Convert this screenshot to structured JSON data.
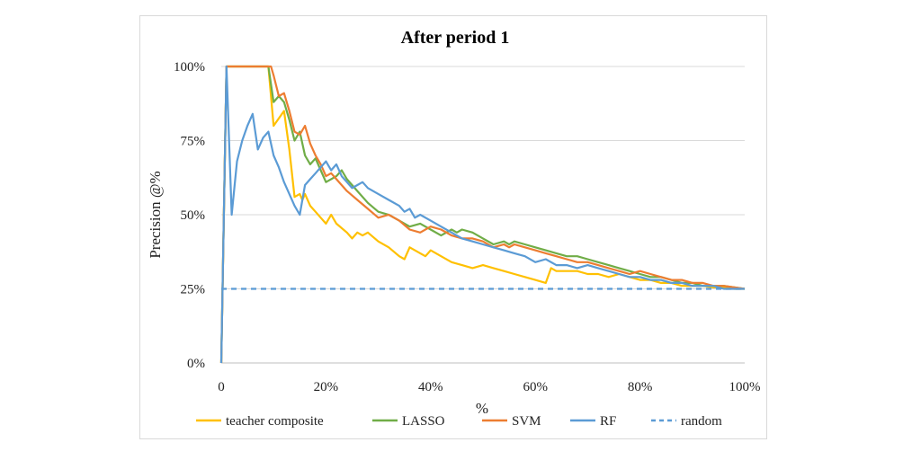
{
  "chart_data": {
    "type": "line",
    "title": "After period 1",
    "xlabel": "%",
    "ylabel": "Precision @%",
    "xlim": [
      0,
      100
    ],
    "ylim": [
      0,
      100
    ],
    "x_ticks": [
      "0",
      "20%",
      "40%",
      "60%",
      "80%",
      "100%"
    ],
    "y_ticks": [
      "0%",
      "25%",
      "50%",
      "75%",
      "100%"
    ],
    "grid": "horizontal",
    "legend_position": "bottom",
    "series": [
      {
        "name": "teacher composite",
        "color": "#ffc000",
        "dash": "solid",
        "points": [
          [
            0,
            0
          ],
          [
            0.5,
            50
          ],
          [
            1,
            100
          ],
          [
            9,
            100
          ],
          [
            10,
            80
          ],
          [
            12,
            85
          ],
          [
            13,
            72
          ],
          [
            14,
            56
          ],
          [
            15,
            57
          ],
          [
            15.5,
            55
          ],
          [
            16,
            57
          ],
          [
            17,
            53
          ],
          [
            18,
            51
          ],
          [
            19,
            49
          ],
          [
            20,
            47
          ],
          [
            21,
            50
          ],
          [
            22,
            47
          ],
          [
            24,
            44
          ],
          [
            25,
            42
          ],
          [
            26,
            44
          ],
          [
            27,
            43
          ],
          [
            28,
            44
          ],
          [
            30,
            41
          ],
          [
            32,
            39
          ],
          [
            34,
            36
          ],
          [
            35,
            35
          ],
          [
            36,
            39
          ],
          [
            38,
            37
          ],
          [
            39,
            36
          ],
          [
            40,
            38
          ],
          [
            42,
            36
          ],
          [
            44,
            34
          ],
          [
            46,
            33
          ],
          [
            48,
            32
          ],
          [
            50,
            33
          ],
          [
            52,
            32
          ],
          [
            54,
            31
          ],
          [
            56,
            30
          ],
          [
            58,
            29
          ],
          [
            60,
            28
          ],
          [
            62,
            27
          ],
          [
            63,
            32
          ],
          [
            64,
            31
          ],
          [
            66,
            31
          ],
          [
            68,
            31
          ],
          [
            70,
            30
          ],
          [
            72,
            30
          ],
          [
            74,
            29
          ],
          [
            76,
            30
          ],
          [
            78,
            29
          ],
          [
            80,
            28
          ],
          [
            82,
            28
          ],
          [
            84,
            27
          ],
          [
            86,
            27
          ],
          [
            88,
            26
          ],
          [
            90,
            26
          ],
          [
            92,
            26
          ],
          [
            94,
            25.5
          ],
          [
            96,
            25.5
          ],
          [
            98,
            25
          ],
          [
            100,
            25
          ]
        ]
      },
      {
        "name": "LASSO",
        "color": "#70ad47",
        "dash": "solid",
        "points": [
          [
            0,
            0
          ],
          [
            0.5,
            50
          ],
          [
            1,
            100
          ],
          [
            9,
            100
          ],
          [
            10,
            88
          ],
          [
            11,
            90
          ],
          [
            12,
            88
          ],
          [
            13,
            82
          ],
          [
            14,
            75
          ],
          [
            15,
            78
          ],
          [
            16,
            70
          ],
          [
            17,
            67
          ],
          [
            18,
            69
          ],
          [
            19,
            65
          ],
          [
            20,
            61
          ],
          [
            21,
            62
          ],
          [
            22,
            63
          ],
          [
            23,
            65
          ],
          [
            24,
            62
          ],
          [
            26,
            58
          ],
          [
            28,
            54
          ],
          [
            30,
            51
          ],
          [
            32,
            50
          ],
          [
            34,
            48
          ],
          [
            36,
            46
          ],
          [
            38,
            47
          ],
          [
            40,
            45
          ],
          [
            42,
            43
          ],
          [
            44,
            45
          ],
          [
            45,
            44
          ],
          [
            46,
            45
          ],
          [
            48,
            44
          ],
          [
            50,
            42
          ],
          [
            52,
            40
          ],
          [
            54,
            41
          ],
          [
            55,
            40
          ],
          [
            56,
            41
          ],
          [
            58,
            40
          ],
          [
            60,
            39
          ],
          [
            62,
            38
          ],
          [
            64,
            37
          ],
          [
            66,
            36
          ],
          [
            68,
            36
          ],
          [
            70,
            35
          ],
          [
            72,
            34
          ],
          [
            74,
            33
          ],
          [
            76,
            32
          ],
          [
            78,
            31
          ],
          [
            80,
            30
          ],
          [
            82,
            29
          ],
          [
            84,
            29
          ],
          [
            86,
            28
          ],
          [
            88,
            27
          ],
          [
            90,
            27
          ],
          [
            92,
            26
          ],
          [
            94,
            26
          ],
          [
            96,
            26
          ],
          [
            98,
            25.5
          ],
          [
            100,
            25
          ]
        ]
      },
      {
        "name": "SVM",
        "color": "#ed7d31",
        "dash": "solid",
        "points": [
          [
            0,
            0
          ],
          [
            0.5,
            50
          ],
          [
            1,
            100
          ],
          [
            9.5,
            100
          ],
          [
            10,
            97
          ],
          [
            11,
            90
          ],
          [
            12,
            91
          ],
          [
            13,
            85
          ],
          [
            14,
            78
          ],
          [
            15,
            77
          ],
          [
            16,
            80
          ],
          [
            17,
            74
          ],
          [
            18,
            70
          ],
          [
            19,
            67
          ],
          [
            20,
            63
          ],
          [
            21,
            64
          ],
          [
            22,
            62
          ],
          [
            24,
            58
          ],
          [
            26,
            55
          ],
          [
            28,
            52
          ],
          [
            30,
            49
          ],
          [
            32,
            50
          ],
          [
            34,
            48
          ],
          [
            36,
            45
          ],
          [
            38,
            44
          ],
          [
            40,
            46
          ],
          [
            42,
            45
          ],
          [
            44,
            43
          ],
          [
            46,
            42
          ],
          [
            48,
            42
          ],
          [
            50,
            41
          ],
          [
            52,
            39
          ],
          [
            54,
            40
          ],
          [
            55,
            39
          ],
          [
            56,
            40
          ],
          [
            58,
            39
          ],
          [
            60,
            38
          ],
          [
            62,
            37
          ],
          [
            64,
            36
          ],
          [
            66,
            35
          ],
          [
            68,
            34
          ],
          [
            70,
            34
          ],
          [
            72,
            33
          ],
          [
            74,
            32
          ],
          [
            76,
            31
          ],
          [
            78,
            30
          ],
          [
            80,
            31
          ],
          [
            82,
            30
          ],
          [
            84,
            29
          ],
          [
            86,
            28
          ],
          [
            88,
            28
          ],
          [
            90,
            27
          ],
          [
            92,
            27
          ],
          [
            94,
            26
          ],
          [
            96,
            26
          ],
          [
            98,
            25.5
          ],
          [
            100,
            25
          ]
        ]
      },
      {
        "name": "RF",
        "color": "#5b9bd5",
        "dash": "solid",
        "points": [
          [
            0,
            0
          ],
          [
            0.5,
            50
          ],
          [
            1,
            100
          ],
          [
            2,
            50
          ],
          [
            3,
            68
          ],
          [
            4,
            75
          ],
          [
            5,
            80
          ],
          [
            6,
            84
          ],
          [
            7,
            72
          ],
          [
            8,
            76
          ],
          [
            9,
            78
          ],
          [
            10,
            70
          ],
          [
            11,
            66
          ],
          [
            12,
            61
          ],
          [
            13,
            57
          ],
          [
            14,
            53
          ],
          [
            15,
            50
          ],
          [
            16,
            60
          ],
          [
            17,
            62
          ],
          [
            18,
            64
          ],
          [
            19,
            66
          ],
          [
            20,
            68
          ],
          [
            21,
            65
          ],
          [
            22,
            67
          ],
          [
            23,
            63
          ],
          [
            24,
            61
          ],
          [
            25,
            59
          ],
          [
            26,
            60
          ],
          [
            27,
            61
          ],
          [
            28,
            59
          ],
          [
            30,
            57
          ],
          [
            32,
            55
          ],
          [
            34,
            53
          ],
          [
            35,
            51
          ],
          [
            36,
            52
          ],
          [
            37,
            49
          ],
          [
            38,
            50
          ],
          [
            40,
            48
          ],
          [
            42,
            46
          ],
          [
            44,
            44
          ],
          [
            46,
            42
          ],
          [
            48,
            41
          ],
          [
            50,
            40
          ],
          [
            52,
            39
          ],
          [
            54,
            38
          ],
          [
            56,
            37
          ],
          [
            58,
            36
          ],
          [
            60,
            34
          ],
          [
            62,
            35
          ],
          [
            64,
            33
          ],
          [
            66,
            33
          ],
          [
            68,
            32
          ],
          [
            70,
            33
          ],
          [
            72,
            32
          ],
          [
            74,
            31
          ],
          [
            76,
            30
          ],
          [
            78,
            29
          ],
          [
            80,
            29
          ],
          [
            82,
            28
          ],
          [
            84,
            28
          ],
          [
            86,
            27
          ],
          [
            88,
            27
          ],
          [
            90,
            26
          ],
          [
            92,
            26
          ],
          [
            94,
            26
          ],
          [
            96,
            25
          ],
          [
            98,
            25
          ],
          [
            100,
            25
          ]
        ]
      },
      {
        "name": "random",
        "color": "#5b9bd5",
        "dash": "dashed",
        "points": [
          [
            0,
            25
          ],
          [
            100,
            25
          ]
        ]
      }
    ]
  }
}
